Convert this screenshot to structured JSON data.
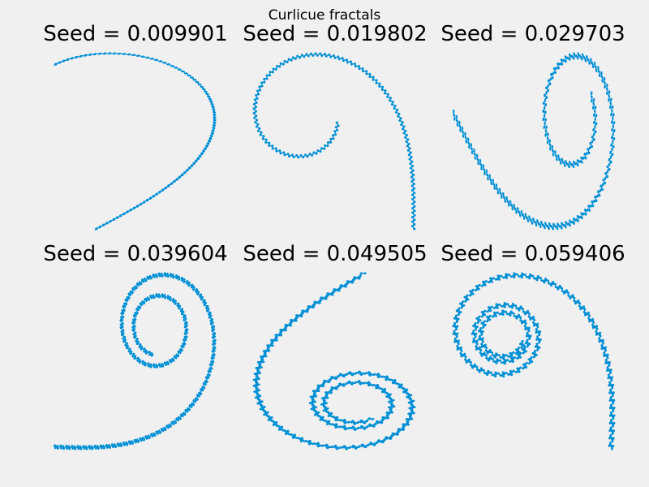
{
  "figure": {
    "suptitle": "Curlicue fractals",
    "background": "#f0f0f0",
    "line_color": "#008fd5"
  },
  "chart_data": [
    {
      "type": "line",
      "title": "Seed = 0.009901",
      "seed": 0.009901
    },
    {
      "type": "line",
      "title": "Seed = 0.019802",
      "seed": 0.019802
    },
    {
      "type": "line",
      "title": "Seed = 0.029703",
      "seed": 0.029703
    },
    {
      "type": "line",
      "title": "Seed = 0.039604",
      "seed": 0.039604
    },
    {
      "type": "line",
      "title": "Seed = 0.049505",
      "seed": 0.049505
    },
    {
      "type": "line",
      "title": "Seed = 0.059406",
      "seed": 0.059406
    }
  ]
}
